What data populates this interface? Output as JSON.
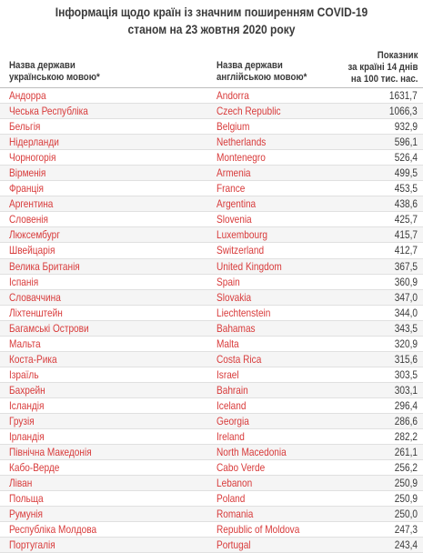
{
  "title_line1": "Інформація щодо країн із значним поширенням COVID-19",
  "title_line2": "станом на 23 жовтня 2020 року",
  "headers": {
    "ua_line1": "Назва держави",
    "ua_line2": "українською мовою*",
    "en_line1": "Назва держави",
    "en_line2": "англійською мовою*",
    "val_line1": "Показник",
    "val_line2": "за країні 14 днів",
    "val_line3": "на 100 тис. нас."
  },
  "rows": [
    {
      "ua": "Андорра",
      "en": "Andorra",
      "val": "1631,7"
    },
    {
      "ua": "Чеська Республіка",
      "en": "Czech Republic",
      "val": "1066,3"
    },
    {
      "ua": "Бельгія",
      "en": "Belgium",
      "val": "932,9"
    },
    {
      "ua": "Нідерланди",
      "en": "Netherlands",
      "val": "596,1"
    },
    {
      "ua": "Чорногорія",
      "en": "Montenegro",
      "val": "526,4"
    },
    {
      "ua": "Вірменія",
      "en": "Armenia",
      "val": "499,5"
    },
    {
      "ua": "Франція",
      "en": "France",
      "val": "453,5"
    },
    {
      "ua": "Аргентина",
      "en": "Argentina",
      "val": "438,6"
    },
    {
      "ua": "Словенія",
      "en": "Slovenia",
      "val": "425,7"
    },
    {
      "ua": "Люксембург",
      "en": "Luxembourg",
      "val": "415,7"
    },
    {
      "ua": "Швейцарія",
      "en": "Switzerland",
      "val": "412,7"
    },
    {
      "ua": "Велика Британія",
      "en": "United Kingdom",
      "val": "367,5"
    },
    {
      "ua": "Іспанія",
      "en": "Spain",
      "val": "360,9"
    },
    {
      "ua": "Словаччина",
      "en": "Slovakia",
      "val": "347,0"
    },
    {
      "ua": "Ліхтенштейн",
      "en": "Liechtenstein",
      "val": "344,0"
    },
    {
      "ua": "Багамські Острови",
      "en": "Bahamas",
      "val": "343,5"
    },
    {
      "ua": "Мальта",
      "en": "Malta",
      "val": "320,9"
    },
    {
      "ua": "Коста-Рика",
      "en": "Costa Rica",
      "val": "315,6"
    },
    {
      "ua": "Ізраїль",
      "en": "Israel",
      "val": "303,5"
    },
    {
      "ua": "Бахрейн",
      "en": "Bahrain",
      "val": "303,1"
    },
    {
      "ua": "Ісландія",
      "en": "Iceland",
      "val": "296,4"
    },
    {
      "ua": "Грузія",
      "en": "Georgia",
      "val": "286,6"
    },
    {
      "ua": "Ірландія",
      "en": "Ireland",
      "val": "282,2"
    },
    {
      "ua": "Північна Македонія",
      "en": "North Macedonia",
      "val": "261,1"
    },
    {
      "ua": "Кабо-Верде",
      "en": "Cabo Verde",
      "val": "256,2"
    },
    {
      "ua": "Ліван",
      "en": "Lebanon",
      "val": "250,9"
    },
    {
      "ua": "Польща",
      "en": "Poland",
      "val": "250,9"
    },
    {
      "ua": "Румунія",
      "en": "Romania",
      "val": "250,0"
    },
    {
      "ua": "Республіка Молдова",
      "en": "Republic of Moldova",
      "val": "247,3"
    },
    {
      "ua": "Португалія",
      "en": "Portugal",
      "val": "243,4"
    }
  ]
}
